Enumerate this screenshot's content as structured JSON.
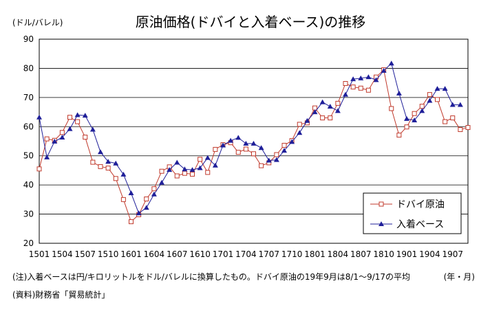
{
  "chart_data": {
    "type": "line",
    "title": "原油価格(ドバイと入着ベース)の推移",
    "ylabel": "(ドル/バレル)",
    "xunit": "(年・月)",
    "ylim": [
      20,
      90
    ],
    "yticks": [
      20,
      30,
      40,
      50,
      60,
      70,
      80,
      90
    ],
    "xticks": [
      "1501",
      "1504",
      "1507",
      "1510",
      "1601",
      "1604",
      "1607",
      "1610",
      "1701",
      "1704",
      "1707",
      "1710",
      "1801",
      "1804",
      "1807",
      "1810",
      "1901",
      "1904",
      "1907"
    ],
    "legend_position": "bottom-right",
    "grid": "horizontal",
    "series": [
      {
        "name": "ドバイ原油",
        "color": "#c0392b",
        "marker": "square-open",
        "values": [
          45.5,
          55.8,
          55.3,
          58.0,
          63.2,
          61.7,
          56.4,
          47.8,
          46.3,
          45.8,
          42.2,
          35.0,
          27.4,
          29.8,
          35.2,
          38.7,
          44.7,
          46.2,
          43.1,
          44.0,
          43.7,
          48.8,
          44.3,
          52.2,
          53.8,
          54.5,
          51.2,
          52.3,
          50.7,
          46.6,
          47.6,
          50.4,
          53.6,
          55.2,
          60.8,
          61.3,
          66.4,
          63.0,
          63.0,
          68.0,
          74.8,
          73.6,
          73.2,
          72.5,
          77.0,
          79.5,
          66.2,
          57.1,
          59.9,
          64.5,
          67.0,
          71.0,
          69.3,
          61.7,
          63.0,
          59.0,
          59.7
        ]
      },
      {
        "name": "入着ベース",
        "color": "#1f1f99",
        "marker": "triangle-filled",
        "values": [
          63.2,
          49.5,
          54.9,
          56.3,
          59.2,
          64.0,
          63.8,
          59.0,
          51.3,
          48.0,
          47.4,
          43.6,
          37.2,
          30.3,
          32.2,
          36.8,
          40.8,
          45.2,
          47.7,
          45.4,
          45.2,
          45.8,
          49.3,
          46.7,
          53.6,
          55.2,
          56.2,
          54.2,
          54.2,
          52.7,
          48.4,
          48.6,
          51.8,
          54.8,
          57.9,
          62.0,
          65.0,
          68.4,
          66.9,
          65.4,
          71.0,
          76.3,
          76.6,
          77.0,
          76.0,
          79.2,
          81.7,
          71.4,
          62.7,
          62.2,
          65.4,
          68.9,
          73.0,
          73.0,
          67.5,
          67.5
        ]
      }
    ]
  },
  "footnote": "(注)入着ベースは円/キロリットルをドル/バレルに換算したもの。ドバイ原油の19年9月は8/1～9/17の平均",
  "source": "(資料)財務省「貿易統計」"
}
